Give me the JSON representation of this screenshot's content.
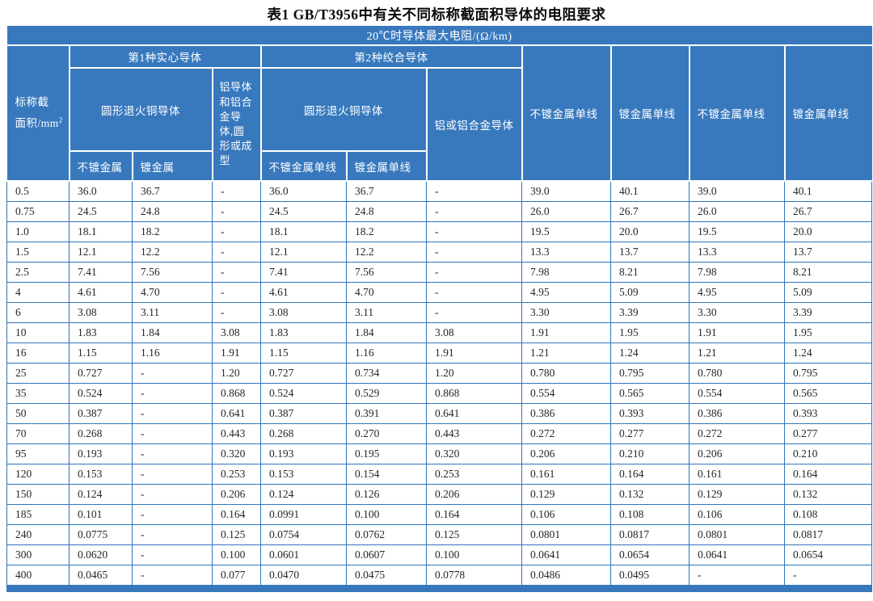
{
  "title": "表1  GB/T3956中有关不同标称截面积导体的电阻要求",
  "table": {
    "top_header": "20℃时导体最大电阻/(Ω/km)",
    "size_header_line1": "标称截",
    "size_header_line2": "面积/mm",
    "size_header_sup": "2",
    "group1": "第1种实心导体",
    "group2": "第2种绞合导体",
    "g1_copper": "圆形退火铜导体",
    "g1_aluminium": "铝导体和铝合金导体,圆形或成型",
    "g1_sub_plain": "不镀金属",
    "g1_sub_coated": "镀金属",
    "g2_copper": "圆形退火铜导体",
    "g2_aluminium": "铝或铝合金导体",
    "g2_sub_plain": "不镀金属单线",
    "g2_sub_coated": "镀金属单线",
    "col7": "不镀金属单线",
    "col8": "镀金属单线",
    "col9": "不镀金属单线",
    "col10": "镀金属单线",
    "rows": [
      [
        "0.5",
        "36.0",
        "36.7",
        "-",
        "36.0",
        "36.7",
        "-",
        "39.0",
        "40.1",
        "39.0",
        "40.1"
      ],
      [
        "0.75",
        "24.5",
        "24.8",
        "-",
        "24.5",
        "24.8",
        "-",
        "26.0",
        "26.7",
        "26.0",
        "26.7"
      ],
      [
        "1.0",
        "18.1",
        "18.2",
        "-",
        "18.1",
        "18.2",
        "-",
        "19.5",
        "20.0",
        "19.5",
        "20.0"
      ],
      [
        "1.5",
        "12.1",
        "12.2",
        "-",
        "12.1",
        "12.2",
        "-",
        "13.3",
        "13.7",
        "13.3",
        "13.7"
      ],
      [
        "2.5",
        "7.41",
        "7.56",
        "-",
        "7.41",
        "7.56",
        "-",
        "7.98",
        "8.21",
        "7.98",
        "8.21"
      ],
      [
        "4",
        "4.61",
        "4.70",
        "-",
        "4.61",
        "4.70",
        "-",
        "4.95",
        "5.09",
        "4.95",
        "5.09"
      ],
      [
        "6",
        "3.08",
        "3.11",
        "-",
        "3.08",
        "3.11",
        "-",
        "3.30",
        "3.39",
        "3.30",
        "3.39"
      ],
      [
        "10",
        "1.83",
        "1.84",
        "3.08",
        "1.83",
        "1.84",
        "3.08",
        "1.91",
        "1.95",
        "1.91",
        "1.95"
      ],
      [
        "16",
        "1.15",
        "1.16",
        "1.91",
        "1.15",
        "1.16",
        "1.91",
        "1.21",
        "1.24",
        "1.21",
        "1.24"
      ],
      [
        "25",
        "0.727",
        "-",
        "1.20",
        "0.727",
        "0.734",
        "1.20",
        "0.780",
        "0.795",
        "0.780",
        "0.795"
      ],
      [
        "35",
        "0.524",
        "-",
        "0.868",
        "0.524",
        "0.529",
        "0.868",
        "0.554",
        "0.565",
        "0.554",
        "0.565"
      ],
      [
        "50",
        "0.387",
        "-",
        "0.641",
        "0.387",
        "0.391",
        "0.641",
        "0.386",
        "0.393",
        "0.386",
        "0.393"
      ],
      [
        "70",
        "0.268",
        "-",
        "0.443",
        "0.268",
        "0.270",
        "0.443",
        "0.272",
        "0.277",
        "0.272",
        "0.277"
      ],
      [
        "95",
        "0.193",
        "-",
        "0.320",
        "0.193",
        "0.195",
        "0.320",
        "0.206",
        "0.210",
        "0.206",
        "0.210"
      ],
      [
        "120",
        "0.153",
        "-",
        "0.253",
        "0.153",
        "0.154",
        "0.253",
        "0.161",
        "0.164",
        "0.161",
        "0.164"
      ],
      [
        "150",
        "0.124",
        "-",
        "0.206",
        "0.124",
        "0.126",
        "0.206",
        "0.129",
        "0.132",
        "0.129",
        "0.132"
      ],
      [
        "185",
        "0.101",
        "-",
        "0.164",
        "0.0991",
        "0.100",
        "0.164",
        "0.106",
        "0.108",
        "0.106",
        "0.108"
      ],
      [
        "240",
        "0.0775",
        "-",
        "0.125",
        "0.0754",
        "0.0762",
        "0.125",
        "0.0801",
        "0.0817",
        "0.0801",
        "0.0817"
      ],
      [
        "300",
        "0.0620",
        "-",
        "0.100",
        "0.0601",
        "0.0607",
        "0.100",
        "0.0641",
        "0.0654",
        "0.0641",
        "0.0654"
      ],
      [
        "400",
        "0.0465",
        "-",
        "0.077",
        "0.0470",
        "0.0475",
        "0.0778",
        "0.0486",
        "0.0495",
        "-",
        "-"
      ]
    ]
  },
  "colors": {
    "header_blue": "#3879be",
    "grid_blue": "#2f76bb"
  }
}
